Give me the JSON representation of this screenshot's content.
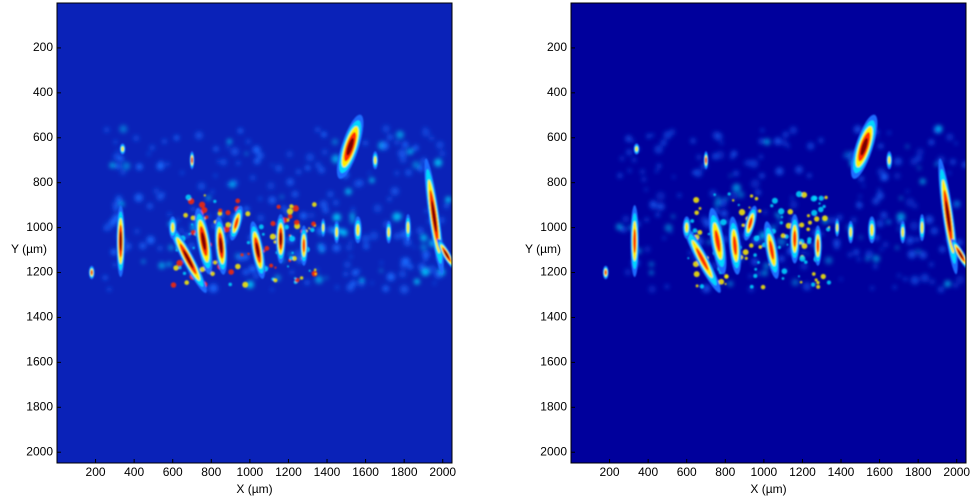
{
  "chart_data": [
    {
      "type": "image",
      "xlabel": "X (µm)",
      "ylabel": "Y (µm)",
      "xlim": [
        0,
        2048
      ],
      "ylim": [
        0,
        2048
      ],
      "yreverse": true,
      "xticks": [
        200,
        400,
        600,
        800,
        1000,
        1200,
        1400,
        1600,
        1800,
        2000
      ],
      "yticks": [
        200,
        400,
        600,
        800,
        1000,
        1200,
        1400,
        1600,
        1800,
        2000
      ]
    },
    {
      "type": "image",
      "xlabel": "X (µm)",
      "ylabel": "Y (µm)",
      "xlim": [
        0,
        2048
      ],
      "ylim": [
        0,
        2048
      ],
      "yreverse": true,
      "xticks": [
        200,
        400,
        600,
        800,
        1000,
        1200,
        1400,
        1600,
        1800,
        2000
      ],
      "yticks": [
        200,
        400,
        600,
        800,
        1000,
        1200,
        1400,
        1600,
        1800,
        2000
      ]
    }
  ]
}
